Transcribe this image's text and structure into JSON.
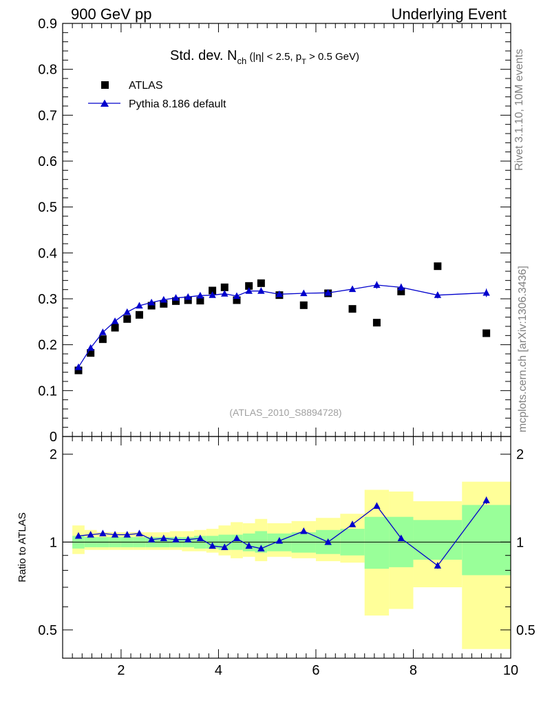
{
  "header": {
    "left_label": "900 GeV pp",
    "right_label": "Underlying Event"
  },
  "side_labels": {
    "rivet": "Rivet 3.1.10,  10M events",
    "mcplots": "mcplots.cern.ch [arXiv:1306.3436]"
  },
  "colors": {
    "mc": "#0000cc",
    "data": "#000000",
    "band_inner": "#99ff99",
    "band_outer": "#ffff99",
    "analysis_tag": "#a0a0a0"
  },
  "chart_data": [
    {
      "type": "scatter",
      "panel": "main",
      "title_parts": {
        "a": "Std. dev. N",
        "a_sub": "ch",
        "b": " (|η| < 2.5, p",
        "b_sub": "T",
        "c": " > 0.5 GeV)"
      },
      "analysis_tag": "(ATLAS_2010_S8894728)",
      "xlim": [
        0.8,
        10.0
      ],
      "ylim": [
        0,
        0.9
      ],
      "yticks": [
        "0",
        "0.1",
        "0.2",
        "0.3",
        "0.4",
        "0.5",
        "0.6",
        "0.7",
        "0.8",
        "0.9"
      ],
      "legend": [
        "ATLAS",
        "Pythia 8.186 default"
      ],
      "legend_position": "top-left",
      "series": [
        {
          "name": "ATLAS",
          "marker": "square",
          "x": [
            1.125,
            1.375,
            1.625,
            1.875,
            2.125,
            2.375,
            2.625,
            2.875,
            3.125,
            3.375,
            3.625,
            3.875,
            4.125,
            4.375,
            4.625,
            4.875,
            5.25,
            5.75,
            6.25,
            6.75,
            7.25,
            7.75,
            8.5,
            9.5
          ],
          "y": [
            0.144,
            0.182,
            0.212,
            0.237,
            0.256,
            0.265,
            0.285,
            0.289,
            0.295,
            0.297,
            0.296,
            0.318,
            0.325,
            0.297,
            0.328,
            0.334,
            0.308,
            0.286,
            0.312,
            0.278,
            0.248,
            0.316,
            0.371,
            0.225
          ]
        },
        {
          "name": "Pythia 8.186 default",
          "marker": "triangle",
          "x": [
            1.125,
            1.375,
            1.625,
            1.875,
            2.125,
            2.375,
            2.625,
            2.875,
            3.125,
            3.375,
            3.625,
            3.875,
            4.125,
            4.375,
            4.625,
            4.875,
            5.25,
            5.75,
            6.25,
            6.75,
            7.25,
            7.75,
            8.5,
            9.5
          ],
          "y": [
            0.151,
            0.193,
            0.227,
            0.251,
            0.271,
            0.285,
            0.292,
            0.298,
            0.302,
            0.304,
            0.307,
            0.308,
            0.311,
            0.306,
            0.317,
            0.317,
            0.31,
            0.312,
            0.313,
            0.321,
            0.33,
            0.325,
            0.308,
            0.313
          ],
          "err": [
            0.003,
            0.003,
            0.003,
            0.003,
            0.003,
            0.003,
            0.003,
            0.003,
            0.003,
            0.003,
            0.004,
            0.004,
            0.004,
            0.004,
            0.004,
            0.005,
            0.005,
            0.005,
            0.006,
            0.006,
            0.008,
            0.008,
            0.007,
            0.009
          ]
        }
      ]
    },
    {
      "type": "scatter",
      "panel": "ratio",
      "ylabel": "Ratio to ATLAS",
      "xlim": [
        0.8,
        10.0
      ],
      "ylim_log": [
        0.4,
        2.3
      ],
      "yticks": [
        0.5,
        1,
        2
      ],
      "ytick_labels": [
        "0.5",
        "1",
        "2"
      ],
      "xticks": [
        2,
        4,
        6,
        8,
        10
      ],
      "xtick_labels": [
        "2",
        "4",
        "6",
        "8",
        "10"
      ],
      "bands": {
        "x_lo": [
          1.0,
          1.25,
          1.5,
          1.75,
          2.0,
          2.25,
          2.5,
          2.75,
          3.0,
          3.25,
          3.5,
          3.75,
          4.0,
          4.25,
          4.5,
          4.75,
          5.0,
          5.5,
          6.0,
          6.5,
          7.0,
          7.5,
          8.0,
          9.0
        ],
        "x_hi": [
          1.25,
          1.5,
          1.75,
          2.0,
          2.25,
          2.5,
          2.75,
          3.0,
          3.25,
          3.5,
          3.75,
          4.0,
          4.25,
          4.5,
          4.75,
          5.0,
          5.5,
          6.0,
          6.5,
          7.0,
          7.5,
          8.0,
          9.0,
          10.0
        ],
        "inner_hi": [
          1.05,
          1.04,
          1.04,
          1.04,
          1.04,
          1.04,
          1.04,
          1.04,
          1.04,
          1.04,
          1.05,
          1.05,
          1.06,
          1.06,
          1.07,
          1.09,
          1.07,
          1.08,
          1.1,
          1.11,
          1.22,
          1.22,
          1.19,
          1.34
        ],
        "inner_lo": [
          0.95,
          0.96,
          0.96,
          0.96,
          0.96,
          0.96,
          0.96,
          0.96,
          0.96,
          0.96,
          0.95,
          0.95,
          0.94,
          0.94,
          0.93,
          0.92,
          0.93,
          0.92,
          0.91,
          0.9,
          0.81,
          0.82,
          0.87,
          0.77
        ],
        "outer_hi": [
          1.14,
          1.1,
          1.08,
          1.08,
          1.08,
          1.08,
          1.08,
          1.08,
          1.09,
          1.09,
          1.1,
          1.11,
          1.14,
          1.17,
          1.16,
          1.2,
          1.16,
          1.18,
          1.21,
          1.25,
          1.51,
          1.49,
          1.38,
          1.61
        ],
        "outer_lo": [
          0.91,
          0.94,
          0.94,
          0.94,
          0.94,
          0.94,
          0.94,
          0.94,
          0.94,
          0.93,
          0.93,
          0.92,
          0.9,
          0.88,
          0.89,
          0.86,
          0.89,
          0.88,
          0.86,
          0.85,
          0.56,
          0.59,
          0.7,
          0.43
        ]
      },
      "series": [
        {
          "name": "Pythia 8.186 default",
          "marker": "triangle",
          "x": [
            1.125,
            1.375,
            1.625,
            1.875,
            2.125,
            2.375,
            2.625,
            2.875,
            3.125,
            3.375,
            3.625,
            3.875,
            4.125,
            4.375,
            4.625,
            4.875,
            5.25,
            5.75,
            6.25,
            6.75,
            7.25,
            7.75,
            8.5,
            9.5
          ],
          "y": [
            1.05,
            1.06,
            1.07,
            1.06,
            1.06,
            1.07,
            1.02,
            1.03,
            1.02,
            1.02,
            1.03,
            0.97,
            0.96,
            1.03,
            0.97,
            0.95,
            1.01,
            1.09,
            1.0,
            1.15,
            1.33,
            1.03,
            0.83,
            1.39
          ],
          "err": [
            0.01,
            0.01,
            0.01,
            0.01,
            0.01,
            0.01,
            0.01,
            0.01,
            0.01,
            0.01,
            0.01,
            0.01,
            0.01,
            0.01,
            0.01,
            0.01,
            0.01,
            0.01,
            0.01,
            0.02,
            0.03,
            0.02,
            0.02,
            0.04
          ]
        }
      ]
    }
  ]
}
